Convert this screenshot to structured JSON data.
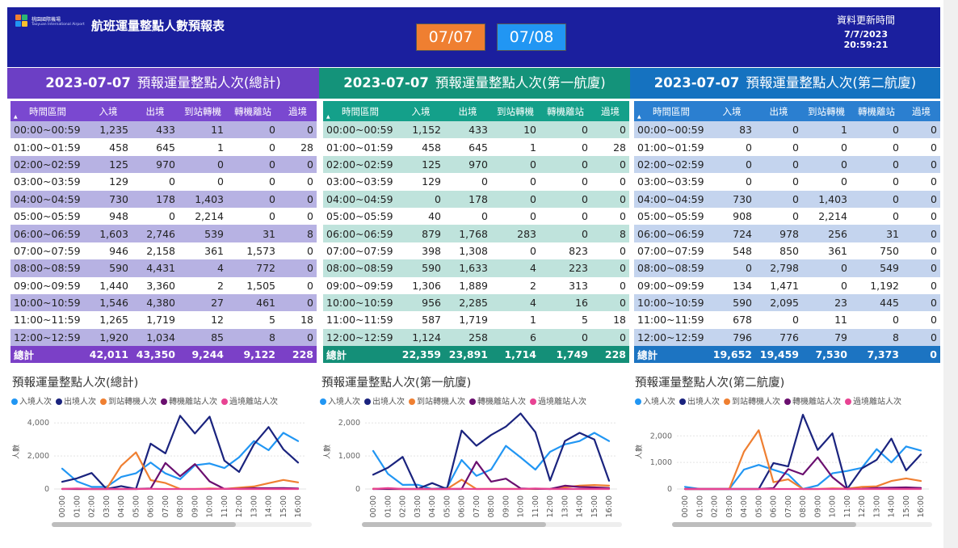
{
  "header": {
    "logo_name": "桃園國際機場",
    "logo_sub": "Taoyuan International Airport",
    "title": "航班運量整點人數預報表",
    "date_buttons": [
      "07/07",
      "07/08"
    ],
    "update_label": "資料更新時間",
    "update_time": "7/7/2023 20:59:21"
  },
  "colors": {
    "topbar": "#1b1f9e",
    "total": "#7b40c7",
    "t1": "#168f7c",
    "t2": "#1f78c4",
    "series": [
      "#2196f3",
      "#1a237e",
      "#ef7f31",
      "#6a0f6f",
      "#e84393"
    ]
  },
  "columns": [
    "時間區間",
    "入境",
    "出境",
    "到站轉機",
    "轉機離站",
    "過境"
  ],
  "time_slots": [
    "00:00~00:59",
    "01:00~01:59",
    "02:00~02:59",
    "03:00~03:59",
    "04:00~04:59",
    "05:00~05:59",
    "06:00~06:59",
    "07:00~07:59",
    "08:00~08:59",
    "09:00~09:59",
    "10:00~10:59",
    "11:00~11:59",
    "12:00~12:59"
  ],
  "total_label": "總計",
  "panels": [
    {
      "date": "2023-07-07",
      "title": "預報運量整點人次(總計)",
      "rows": [
        [
          "1,235",
          "433",
          "11",
          "0",
          "0"
        ],
        [
          "458",
          "645",
          "1",
          "0",
          "28"
        ],
        [
          "125",
          "970",
          "0",
          "0",
          "0"
        ],
        [
          "129",
          "0",
          "0",
          "0",
          "0"
        ],
        [
          "730",
          "178",
          "1,403",
          "0",
          "0"
        ],
        [
          "948",
          "0",
          "2,214",
          "0",
          "0"
        ],
        [
          "1,603",
          "2,746",
          "539",
          "31",
          "8"
        ],
        [
          "946",
          "2,158",
          "361",
          "1,573",
          "0"
        ],
        [
          "590",
          "4,431",
          "4",
          "772",
          "0"
        ],
        [
          "1,440",
          "3,360",
          "2",
          "1,505",
          "0"
        ],
        [
          "1,546",
          "4,380",
          "27",
          "461",
          "0"
        ],
        [
          "1,265",
          "1,719",
          "12",
          "5",
          "18"
        ],
        [
          "1,920",
          "1,034",
          "85",
          "8",
          "0"
        ]
      ],
      "totals": [
        "42,011",
        "43,350",
        "9,244",
        "9,122",
        "228"
      ]
    },
    {
      "date": "2023-07-07",
      "title": "預報運量整點人次(第一航廈)",
      "rows": [
        [
          "1,152",
          "433",
          "10",
          "0",
          "0"
        ],
        [
          "458",
          "645",
          "1",
          "0",
          "28"
        ],
        [
          "125",
          "970",
          "0",
          "0",
          "0"
        ],
        [
          "129",
          "0",
          "0",
          "0",
          "0"
        ],
        [
          "0",
          "178",
          "0",
          "0",
          "0"
        ],
        [
          "40",
          "0",
          "0",
          "0",
          "0"
        ],
        [
          "879",
          "1,768",
          "283",
          "0",
          "8"
        ],
        [
          "398",
          "1,308",
          "0",
          "823",
          "0"
        ],
        [
          "590",
          "1,633",
          "4",
          "223",
          "0"
        ],
        [
          "1,306",
          "1,889",
          "2",
          "313",
          "0"
        ],
        [
          "956",
          "2,285",
          "4",
          "16",
          "0"
        ],
        [
          "587",
          "1,719",
          "1",
          "5",
          "18"
        ],
        [
          "1,124",
          "258",
          "6",
          "0",
          "0"
        ]
      ],
      "totals": [
        "22,359",
        "23,891",
        "1,714",
        "1,749",
        "228"
      ]
    },
    {
      "date": "2023-07-07",
      "title": "預報運量整點人次(第二航廈)",
      "rows": [
        [
          "83",
          "0",
          "1",
          "0",
          "0"
        ],
        [
          "0",
          "0",
          "0",
          "0",
          "0"
        ],
        [
          "0",
          "0",
          "0",
          "0",
          "0"
        ],
        [
          "0",
          "0",
          "0",
          "0",
          "0"
        ],
        [
          "730",
          "0",
          "1,403",
          "0",
          "0"
        ],
        [
          "908",
          "0",
          "2,214",
          "0",
          "0"
        ],
        [
          "724",
          "978",
          "256",
          "31",
          "0"
        ],
        [
          "548",
          "850",
          "361",
          "750",
          "0"
        ],
        [
          "0",
          "2,798",
          "0",
          "549",
          "0"
        ],
        [
          "134",
          "1,471",
          "0",
          "1,192",
          "0"
        ],
        [
          "590",
          "2,095",
          "23",
          "445",
          "0"
        ],
        [
          "678",
          "0",
          "11",
          "0",
          "0"
        ],
        [
          "796",
          "776",
          "79",
          "8",
          "0"
        ]
      ],
      "totals": [
        "19,652",
        "19,459",
        "7,530",
        "7,373",
        "0"
      ]
    }
  ],
  "chart_data": [
    {
      "type": "line",
      "title": "預報運量整點人次(總計)",
      "xlabel": "",
      "ylabel": "人數",
      "x": [
        "00:00",
        "01:00",
        "02:00",
        "03:00",
        "04:00",
        "05:00",
        "06:00",
        "07:00",
        "08:00",
        "09:00",
        "10:00",
        "11:00",
        "12:00",
        "13:00",
        "14:00",
        "15:00",
        "16:00"
      ],
      "ylim": [
        0,
        4500
      ],
      "yticks": [
        0,
        2000,
        4000
      ],
      "series": [
        {
          "name": "入境人次",
          "values": [
            1235,
            458,
            125,
            129,
            730,
            948,
            1603,
            946,
            590,
            1440,
            1546,
            1265,
            1920,
            2900,
            2350,
            3400,
            2900
          ]
        },
        {
          "name": "出境人次",
          "values": [
            433,
            645,
            970,
            0,
            178,
            0,
            2746,
            2158,
            4431,
            3360,
            4380,
            1719,
            1034,
            2700,
            3750,
            2400,
            1600
          ]
        },
        {
          "name": "到站轉機人次",
          "values": [
            11,
            1,
            0,
            0,
            1403,
            2214,
            539,
            361,
            4,
            2,
            27,
            12,
            85,
            150,
            350,
            550,
            400
          ]
        },
        {
          "name": "轉機離站人次",
          "values": [
            0,
            0,
            0,
            0,
            0,
            0,
            31,
            1573,
            772,
            1505,
            461,
            5,
            8,
            50,
            50,
            60,
            30
          ]
        },
        {
          "name": "過境離站人次",
          "values": [
            0,
            28,
            0,
            0,
            0,
            0,
            8,
            0,
            0,
            0,
            0,
            18,
            0,
            0,
            0,
            0,
            0
          ]
        }
      ],
      "legend": "top-left",
      "grid": true
    },
    {
      "type": "line",
      "title": "預報運量整點人次(第一航廈)",
      "xlabel": "",
      "ylabel": "人數",
      "x": [
        "00:00",
        "01:00",
        "02:00",
        "03:00",
        "04:00",
        "05:00",
        "06:00",
        "07:00",
        "08:00",
        "09:00",
        "10:00",
        "11:00",
        "12:00",
        "13:00",
        "14:00",
        "15:00",
        "16:00"
      ],
      "ylim": [
        0,
        2250
      ],
      "yticks": [
        0,
        1000,
        2000
      ],
      "series": [
        {
          "name": "入境人次",
          "values": [
            1152,
            458,
            125,
            129,
            0,
            40,
            879,
            398,
            590,
            1306,
            956,
            587,
            1124,
            1350,
            1450,
            1700,
            1450
          ]
        },
        {
          "name": "出境人次",
          "values": [
            433,
            645,
            970,
            0,
            178,
            0,
            1768,
            1308,
            1633,
            1889,
            2285,
            1719,
            258,
            1450,
            1700,
            1500,
            250
          ]
        },
        {
          "name": "到站轉機人次",
          "values": [
            10,
            1,
            0,
            0,
            0,
            0,
            283,
            0,
            4,
            2,
            4,
            1,
            6,
            50,
            100,
            120,
            100
          ]
        },
        {
          "name": "轉機離站人次",
          "values": [
            0,
            0,
            0,
            0,
            0,
            0,
            0,
            823,
            223,
            313,
            16,
            5,
            0,
            100,
            60,
            50,
            30
          ]
        },
        {
          "name": "過境離站人次",
          "values": [
            0,
            28,
            0,
            0,
            0,
            0,
            8,
            0,
            0,
            0,
            0,
            18,
            0,
            0,
            0,
            0,
            0
          ]
        }
      ],
      "legend": "top-left",
      "grid": true
    },
    {
      "type": "line",
      "title": "預報運量整點人次(第二航廈)",
      "xlabel": "",
      "ylabel": "人數",
      "x": [
        "00:00",
        "01:00",
        "02:00",
        "03:00",
        "04:00",
        "05:00",
        "06:00",
        "07:00",
        "08:00",
        "09:00",
        "10:00",
        "11:00",
        "12:00",
        "13:00",
        "14:00",
        "15:00",
        "16:00"
      ],
      "ylim": [
        0,
        2800
      ],
      "yticks": [
        0,
        1000,
        2000
      ],
      "series": [
        {
          "name": "入境人次",
          "values": [
            83,
            0,
            0,
            0,
            730,
            908,
            724,
            548,
            0,
            134,
            590,
            678,
            796,
            1500,
            1000,
            1600,
            1450
          ]
        },
        {
          "name": "出境人次",
          "values": [
            0,
            0,
            0,
            0,
            0,
            0,
            978,
            850,
            2798,
            1471,
            2095,
            0,
            776,
            1100,
            1900,
            700,
            1300
          ]
        },
        {
          "name": "到站轉機人次",
          "values": [
            1,
            0,
            0,
            0,
            1403,
            2214,
            256,
            361,
            0,
            0,
            23,
            11,
            79,
            100,
            300,
            400,
            300
          ]
        },
        {
          "name": "轉機離站人次",
          "values": [
            0,
            0,
            0,
            0,
            0,
            0,
            31,
            750,
            549,
            1192,
            445,
            0,
            8,
            40,
            50,
            60,
            40
          ]
        },
        {
          "name": "過境離站人次",
          "values": [
            0,
            0,
            0,
            0,
            0,
            0,
            0,
            0,
            0,
            0,
            0,
            0,
            0,
            0,
            0,
            0,
            0
          ]
        }
      ],
      "legend": "top-left",
      "grid": true
    }
  ]
}
